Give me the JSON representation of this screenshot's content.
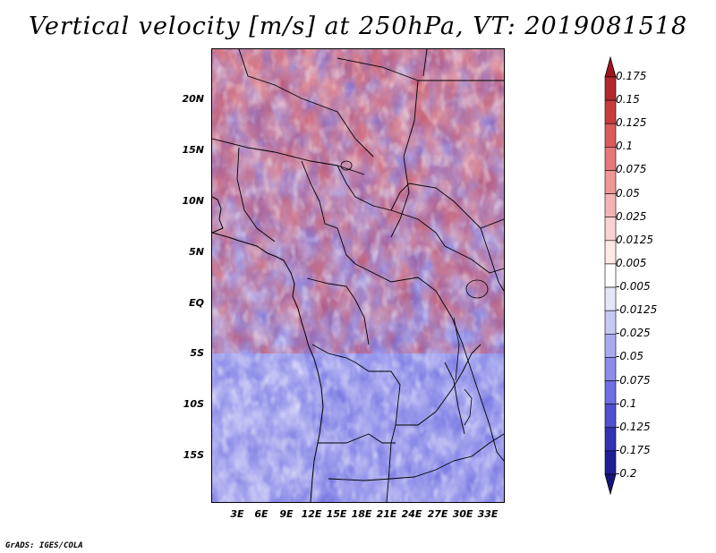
{
  "title": "Vertical velocity [m/s] at 250hPa, VT: 2019081518",
  "credit": "GrADS: IGES/COLA",
  "map": {
    "lat_ticks": [
      "20N",
      "15N",
      "10N",
      "5N",
      "EQ",
      "5S",
      "10S",
      "15S"
    ],
    "lon_ticks": [
      "3E",
      "6E",
      "9E",
      "12E",
      "15E",
      "18E",
      "21E",
      "24E",
      "27E",
      "30E",
      "33E"
    ],
    "lat_range": [
      -20,
      24
    ],
    "lon_range": [
      0,
      35
    ]
  },
  "colorbar": {
    "labels": [
      "0.175",
      "0.15",
      "0.125",
      "0.1",
      "0.075",
      "0.05",
      "0.025",
      "0.0125",
      "0.005",
      "-0.005",
      "-0.0125",
      "-0.025",
      "-0.05",
      "-0.075",
      "-0.1",
      "-0.125",
      "-0.175",
      "-0.2"
    ],
    "colors": [
      "#a0141e",
      "#b4282d",
      "#c83c3c",
      "#dc5a5a",
      "#e67878",
      "#f09696",
      "#f5b4b4",
      "#fad2d2",
      "#ffe8e8",
      "#ffffff",
      "#e6e6fa",
      "#c8c8f5",
      "#aaaaf0",
      "#8c8ceb",
      "#6e6ee6",
      "#5050d2",
      "#3232b4",
      "#1e1e96",
      "#14147d"
    ]
  }
}
